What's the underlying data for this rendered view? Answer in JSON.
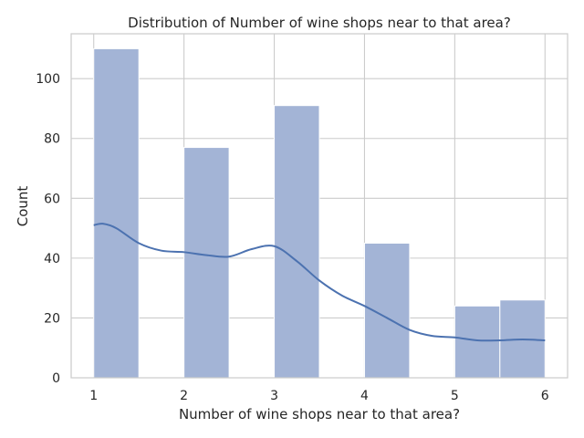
{
  "chart_data": {
    "type": "bar",
    "title": "Distribution of Number of wine shops near to that area?",
    "xlabel": "Number of wine shops near to that area?",
    "ylabel": "Count",
    "xlim": [
      0.75,
      6.25
    ],
    "ylim": [
      0,
      115
    ],
    "x_ticks": [
      "1",
      "2",
      "3",
      "4",
      "5",
      "6"
    ],
    "y_ticks": [
      "0",
      "20",
      "40",
      "60",
      "80",
      "100"
    ],
    "grid": true,
    "bins": [
      {
        "start": 1.0,
        "end": 1.5,
        "value": 110
      },
      {
        "start": 1.5,
        "end": 2.0,
        "value": 0
      },
      {
        "start": 2.0,
        "end": 2.5,
        "value": 77
      },
      {
        "start": 2.5,
        "end": 3.0,
        "value": 0
      },
      {
        "start": 3.0,
        "end": 3.5,
        "value": 91
      },
      {
        "start": 3.5,
        "end": 4.0,
        "value": 0
      },
      {
        "start": 4.0,
        "end": 4.5,
        "value": 45
      },
      {
        "start": 4.5,
        "end": 5.0,
        "value": 0
      },
      {
        "start": 5.0,
        "end": 5.5,
        "value": 24
      },
      {
        "start": 5.5,
        "end": 6.0,
        "value": 26
      }
    ],
    "kde": {
      "x": [
        1.0,
        1.1,
        1.25,
        1.5,
        1.75,
        2.0,
        2.25,
        2.5,
        2.75,
        3.0,
        3.25,
        3.5,
        3.75,
        4.0,
        4.25,
        4.5,
        4.75,
        5.0,
        5.25,
        5.5,
        5.75,
        6.0
      ],
      "y": [
        51,
        51.5,
        50,
        45,
        42.5,
        42,
        41,
        40.5,
        43,
        44,
        39,
        32.5,
        27.5,
        24,
        20,
        16,
        14,
        13.5,
        12.5,
        12.5,
        12.8,
        12.5
      ]
    },
    "colors": {
      "bar_fill": "#a3b4d6",
      "bar_edge": "#ffffff",
      "kde_line": "#4c72b0",
      "grid": "#cccccc",
      "axes_edge": "#cccccc",
      "text": "#262626"
    }
  }
}
